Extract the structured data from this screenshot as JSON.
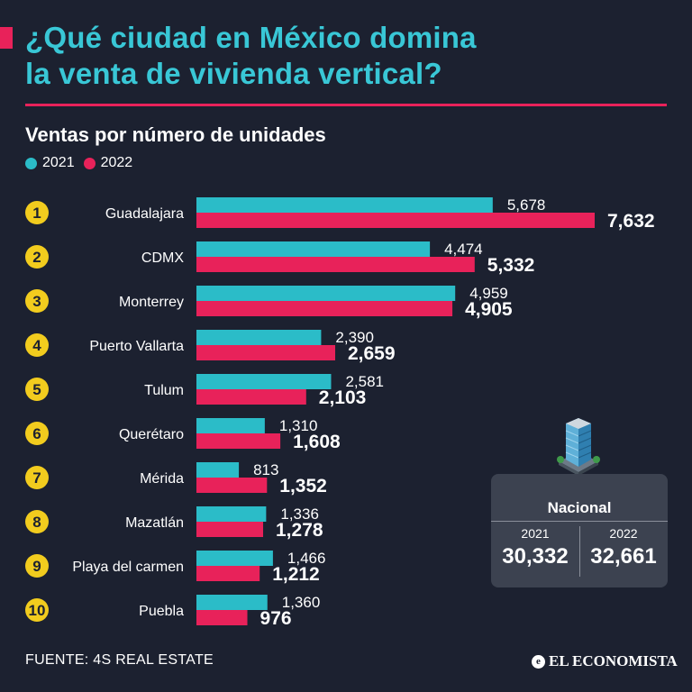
{
  "title_line1": "¿Qué ciudad en México domina",
  "title_line2": "la venta de vivienda vertical?",
  "subtitle": "Ventas por número de unidades",
  "legend": [
    "2021",
    "2022"
  ],
  "colors": {
    "bg": "#1c2130",
    "series_2021": "#2bbcc8",
    "series_2022": "#e8225a",
    "rank_badge": "#f2cc1e",
    "title": "#39c7d6"
  },
  "chart_data": {
    "type": "bar",
    "orientation": "horizontal",
    "title": "Ventas por número de unidades",
    "ranks": [
      "1",
      "2",
      "3",
      "4",
      "5",
      "6",
      "7",
      "8",
      "9",
      "10"
    ],
    "categories": [
      "Guadalajara",
      "CDMX",
      "Monterrey",
      "Puerto Vallarta",
      "Tulum",
      "Querétaro",
      "Mérida",
      "Mazatlán",
      "Playa del carmen",
      "Puebla"
    ],
    "series": [
      {
        "name": "2021",
        "values": [
          5678,
          4474,
          4959,
          2390,
          2581,
          1310,
          813,
          1336,
          1466,
          1360
        ],
        "labels": [
          "5,678",
          "4,474",
          "4,959",
          "2,390",
          "2,581",
          "1,310",
          "813",
          "1,336",
          "1,466",
          "1,360"
        ]
      },
      {
        "name": "2022",
        "values": [
          7632,
          5332,
          4905,
          2659,
          2103,
          1608,
          1352,
          1278,
          1212,
          976
        ],
        "labels": [
          "7,632",
          "5,332",
          "4,905",
          "2,659",
          "2,103",
          "1,608",
          "1,352",
          "1,278",
          "1,212",
          "976"
        ]
      }
    ],
    "xlim": [
      0,
      7632
    ],
    "grid": false,
    "legend_position": "top-left"
  },
  "national": {
    "label": "Nacional",
    "year_2021": "2021",
    "value_2021": "30,332",
    "year_2022": "2022",
    "value_2022": "32,661"
  },
  "source": "FUENTE: 4S REAL ESTATE",
  "brand": "EL ECONOMISTA"
}
